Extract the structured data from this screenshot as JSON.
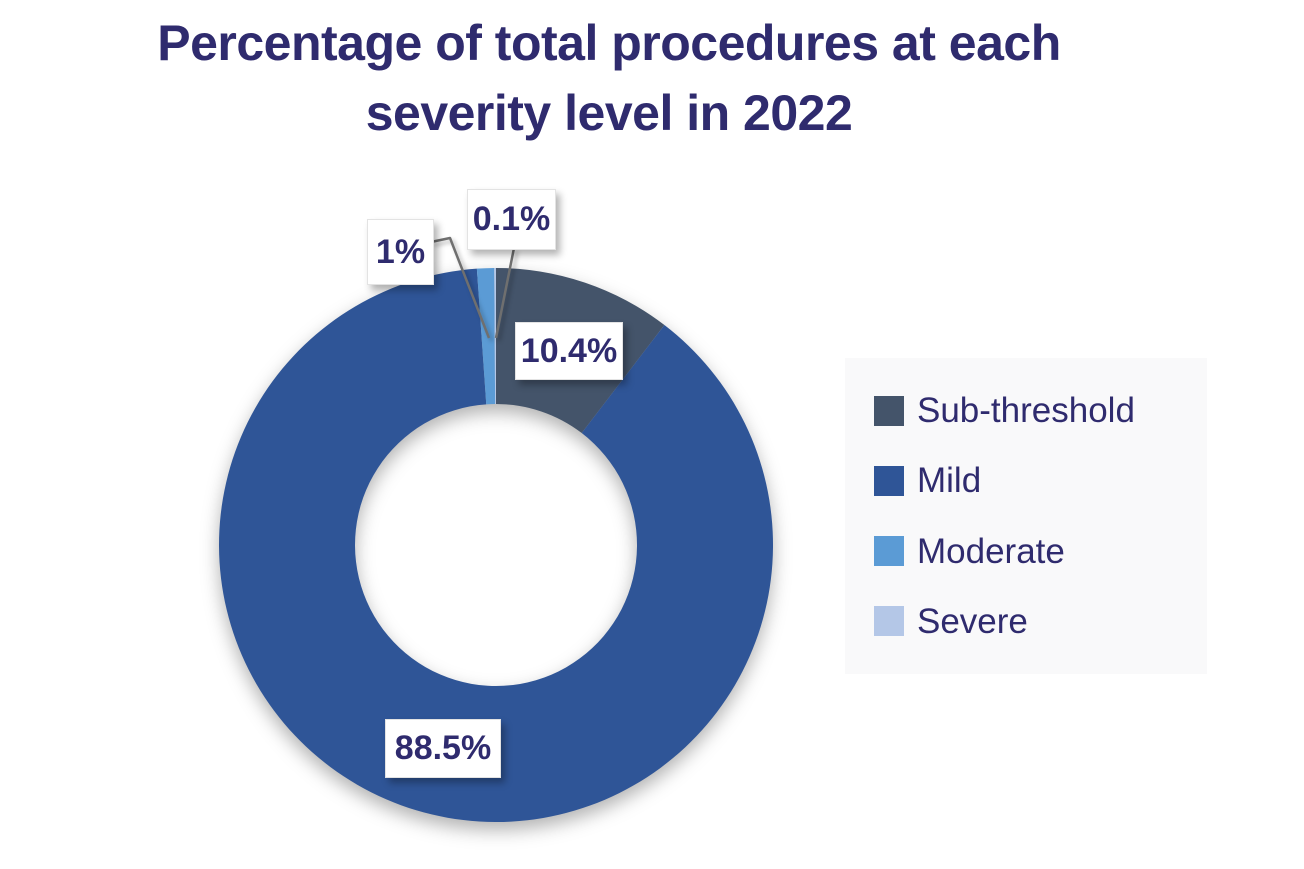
{
  "page": {
    "background": "#FFFFFF"
  },
  "header": {
    "title_line1": "Percentage of total procedures at each",
    "title_line2": "severity level in 2022"
  },
  "chart_data": {
    "type": "pie",
    "subtype": "donut",
    "title": "Percentage of total procedures at each severity level in 2022",
    "categories": [
      "Sub-threshold",
      "Mild",
      "Moderate",
      "Severe"
    ],
    "values": [
      10.4,
      88.5,
      1,
      0.1
    ],
    "slice_labels": [
      "10.4%",
      "88.5%",
      "1%",
      "0.1%"
    ],
    "colors": [
      "#44546A",
      "#2F5597",
      "#5B9BD5",
      "#B4C7E7"
    ],
    "unit": "%",
    "start_angle_deg": 0,
    "direction": "clockwise",
    "donut_hole_ratio": 0.51,
    "legend_position": "right",
    "legend_bg": "#F9F9FA"
  },
  "style": {
    "title_color": "#2F2B6E",
    "label_text_color": "#2F2B6E",
    "leader_line_color": "#6F6F6F"
  }
}
